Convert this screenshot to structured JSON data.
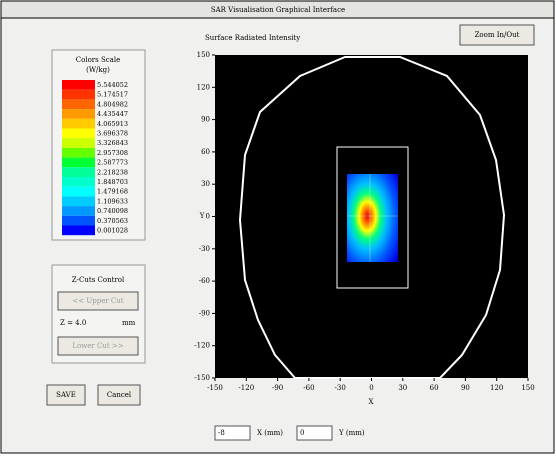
{
  "window": {
    "title": "SAR Visualisation Graphical Interface"
  },
  "buttons": {
    "zoom": "Zoom In/Out",
    "upper_cut": "<< Upper Cut",
    "lower_cut": "Lower Cut >>",
    "save": "SAVE",
    "cancel": "Cancel"
  },
  "color_scale": {
    "title": "Colors Scale",
    "unit": "(W/kg)",
    "levels": [
      5.544052,
      5.174517,
      4.804982,
      4.435447,
      4.065913,
      3.696378,
      3.326843,
      2.957308,
      2.587773,
      2.218238,
      1.848703,
      1.479168,
      1.109633,
      0.740098,
      0.370563,
      0.001028
    ],
    "colors": [
      "#ff0000",
      "#ff3300",
      "#ff6600",
      "#ff9900",
      "#ffcc00",
      "#ffff00",
      "#ccff00",
      "#66ff00",
      "#00ff33",
      "#00ff99",
      "#00ffcc",
      "#00ffff",
      "#00ccff",
      "#0099ff",
      "#0055ff",
      "#0000ff"
    ]
  },
  "zcuts": {
    "title": "Z-Cuts Control",
    "z_label": "Z = 4.0",
    "z_unit": "mm"
  },
  "plot": {
    "title": "Surface Radiated Intensity",
    "xlabel": "X",
    "ylabel": "Y",
    "xlim": [
      -150,
      150
    ],
    "ylim": [
      -150,
      150
    ],
    "xticks": [
      -150,
      -120,
      -90,
      -60,
      -30,
      0,
      30,
      60,
      90,
      120,
      150
    ],
    "yticks": [
      -150,
      -120,
      -90,
      -60,
      -30,
      0,
      30,
      60,
      90,
      120,
      150
    ]
  },
  "inputs": {
    "x_value": "-8",
    "x_label": "X (mm)",
    "y_value": "0",
    "y_label": "Y (mm)"
  }
}
